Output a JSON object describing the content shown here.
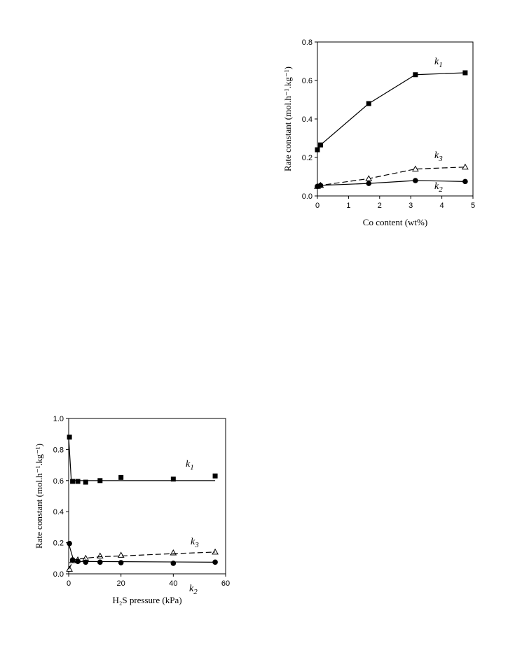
{
  "chart_data": [
    {
      "type": "scatter",
      "xlabel": "Co content (wt%)",
      "ylabel": "Rate constant (mol.h⁻¹.kg⁻¹)",
      "xlim": [
        0,
        5
      ],
      "xticks": [
        0,
        1,
        2,
        3,
        4,
        5
      ],
      "ylim": [
        0,
        0.8
      ],
      "yticks": [
        {
          "value": 0,
          "label": "0.0"
        },
        0.2,
        0.4,
        0.6,
        0.8
      ],
      "series": [
        {
          "name": "k1",
          "color": "#000000",
          "marker": "square",
          "dashed": false,
          "x": [
            0,
            0.1,
            1.65,
            3.15,
            4.75
          ],
          "values": [
            0.24,
            0.265,
            0.48,
            0.63,
            0.64
          ]
        },
        {
          "name": "k3",
          "color": "#000000",
          "marker": "triangle",
          "dashed": true,
          "x": [
            0,
            0.1,
            1.65,
            3.15,
            4.75
          ],
          "values": [
            0.05,
            0.055,
            0.09,
            0.14,
            0.15
          ]
        },
        {
          "name": "k2",
          "color": "#000000",
          "marker": "circle",
          "dashed": false,
          "x": [
            0,
            0.1,
            1.65,
            3.15,
            4.75
          ],
          "values": [
            0.05,
            0.055,
            0.065,
            0.08,
            0.075
          ]
        }
      ]
    },
    {
      "type": "scatter",
      "xlabel": "H₂S pressure (kPa)",
      "ylabel": "Rate constant (mol.h⁻¹.kg⁻¹)",
      "xlim": [
        0,
        60
      ],
      "xticks": [
        0,
        20,
        40,
        60
      ],
      "ylim": [
        0,
        1
      ],
      "yticks": [
        {
          "value": 0,
          "label": "0.0"
        },
        0.2,
        0.4,
        0.6,
        0.8,
        {
          "value": 1,
          "label": "1.0"
        }
      ],
      "series": [
        {
          "name": "k1",
          "color": "#000000",
          "marker": "square",
          "dashed": false,
          "line": false,
          "x": [
            0.3,
            1.5,
            3.5,
            6.5,
            12,
            20,
            40,
            56
          ],
          "values": [
            0.88,
            0.595,
            0.595,
            0.59,
            0.6,
            0.62,
            0.61,
            0.63
          ]
        },
        {
          "name": "k3",
          "color": "#000000",
          "marker": "triangle",
          "dashed": true,
          "line": false,
          "x": [
            0.3,
            1.5,
            3.5,
            6.5,
            12,
            20,
            40,
            56
          ],
          "values": [
            0.03,
            0.085,
            0.09,
            0.1,
            0.115,
            0.12,
            0.135,
            0.14
          ]
        },
        {
          "name": "k2",
          "color": "#000000",
          "marker": "circle",
          "dashed": false,
          "line": false,
          "x": [
            0.3,
            1.5,
            3.5,
            6.5,
            12,
            20,
            40,
            56
          ],
          "values": [
            0.195,
            0.09,
            0.08,
            0.075,
            0.075,
            0.072,
            0.068,
            0.075
          ]
        },
        {
          "color": "#000000",
          "marker": "none",
          "dashed": false,
          "x": [
            0,
            1,
            56
          ],
          "values": [
            0.88,
            0.6,
            0.6
          ]
        },
        {
          "color": "#000000",
          "marker": "none",
          "dashed": true,
          "x": [
            0,
            2,
            6,
            12,
            20,
            40,
            56
          ],
          "values": [
            0.03,
            0.09,
            0.1,
            0.11,
            0.115,
            0.13,
            0.14
          ]
        },
        {
          "color": "#000000",
          "marker": "none",
          "dashed": false,
          "x": [
            0,
            2,
            56
          ],
          "values": [
            0.195,
            0.08,
            0.075
          ]
        }
      ]
    }
  ]
}
